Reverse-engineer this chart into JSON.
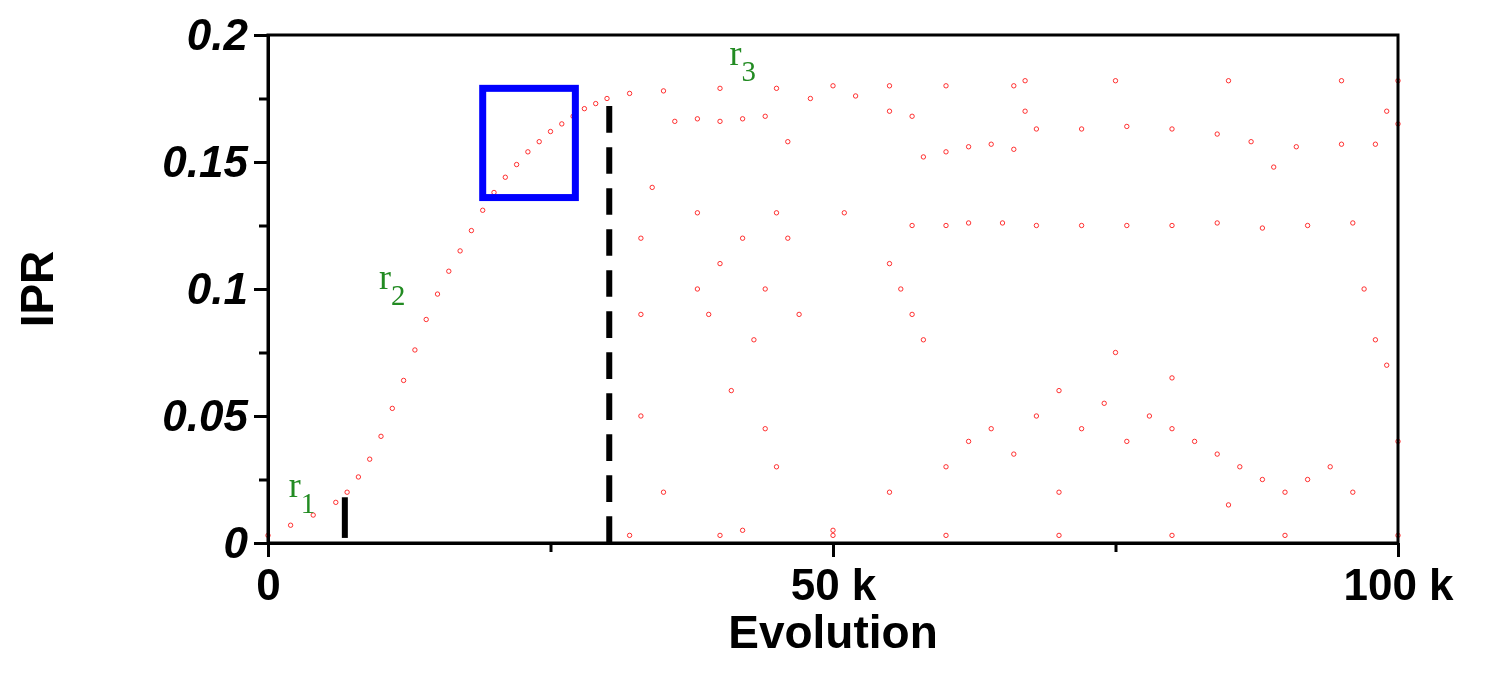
{
  "chart_data": {
    "type": "scatter",
    "xlabel": "Evolution",
    "ylabel": "IPR",
    "xlim": [
      0,
      100
    ],
    "ylim": [
      0,
      0.2
    ],
    "xticks": [
      {
        "value": 0,
        "label": "0"
      },
      {
        "value": 25,
        "label": null
      },
      {
        "value": 50,
        "label": "50 k"
      },
      {
        "value": 75,
        "label": null
      },
      {
        "value": 100,
        "label": "100 k"
      }
    ],
    "yticks": [
      0,
      {
        "value": 0.025,
        "label": null
      },
      0.05,
      {
        "value": 0.075,
        "label": null
      },
      0.1,
      {
        "value": 0.125,
        "label": null
      },
      0.15,
      {
        "value": 0.175,
        "label": null
      },
      0.2
    ],
    "marker": "circle",
    "grid": false,
    "series": [
      {
        "color": "#ff0000",
        "x": [
          0,
          2,
          4,
          6,
          7,
          8,
          9,
          10,
          11,
          12,
          13,
          14,
          15,
          16,
          17,
          18,
          19,
          20,
          21,
          22,
          23,
          24,
          25,
          26,
          27,
          28,
          29,
          30,
          32,
          35,
          40,
          45,
          50,
          55,
          60,
          66,
          67,
          75,
          85,
          95,
          100,
          32,
          40,
          50,
          60,
          70,
          80,
          90,
          100,
          36,
          38,
          40,
          42,
          44,
          46,
          48,
          52,
          55,
          57,
          58,
          60,
          62,
          64,
          66,
          67,
          68,
          72,
          76,
          80,
          84,
          87,
          89,
          91,
          95,
          98,
          99,
          100,
          33,
          33,
          33,
          34,
          35,
          38,
          38,
          39,
          40,
          41,
          42,
          43,
          44,
          44,
          45,
          45,
          46,
          47,
          51,
          55,
          56,
          57,
          57,
          58,
          60,
          62,
          65,
          68,
          72,
          76,
          80,
          84,
          88,
          92,
          96,
          60,
          62,
          64,
          66,
          68,
          70,
          72,
          74,
          76,
          78,
          80,
          82,
          84,
          86,
          88,
          90,
          92,
          94,
          96,
          97,
          98,
          99,
          100,
          75,
          80,
          70,
          85,
          55,
          50,
          42
        ],
        "values": [
          0.003,
          0.007,
          0.011,
          0.016,
          0.02,
          0.026,
          0.033,
          0.042,
          0.053,
          0.064,
          0.076,
          0.088,
          0.098,
          0.107,
          0.115,
          0.123,
          0.131,
          0.138,
          0.144,
          0.149,
          0.154,
          0.158,
          0.162,
          0.165,
          0.168,
          0.171,
          0.173,
          0.175,
          0.177,
          0.178,
          0.179,
          0.179,
          0.18,
          0.18,
          0.18,
          0.18,
          0.182,
          0.182,
          0.182,
          0.182,
          0.182,
          0.003,
          0.003,
          0.003,
          0.003,
          0.003,
          0.003,
          0.003,
          0.003,
          0.166,
          0.167,
          0.166,
          0.167,
          0.168,
          0.158,
          0.175,
          0.176,
          0.17,
          0.168,
          0.152,
          0.154,
          0.156,
          0.157,
          0.155,
          0.17,
          0.163,
          0.163,
          0.164,
          0.163,
          0.161,
          0.158,
          0.148,
          0.156,
          0.157,
          0.157,
          0.17,
          0.165,
          0.12,
          0.09,
          0.05,
          0.14,
          0.02,
          0.13,
          0.1,
          0.09,
          0.11,
          0.06,
          0.12,
          0.08,
          0.1,
          0.045,
          0.13,
          0.03,
          0.12,
          0.09,
          0.13,
          0.11,
          0.1,
          0.09,
          0.125,
          0.08,
          0.125,
          0.126,
          0.126,
          0.125,
          0.125,
          0.125,
          0.125,
          0.126,
          0.124,
          0.125,
          0.126,
          0.03,
          0.04,
          0.045,
          0.035,
          0.05,
          0.06,
          0.045,
          0.055,
          0.04,
          0.05,
          0.045,
          0.04,
          0.035,
          0.03,
          0.025,
          0.02,
          0.025,
          0.03,
          0.02,
          0.1,
          0.08,
          0.07,
          0.04,
          0.075,
          0.065,
          0.02,
          0.015,
          0.02,
          0.005,
          0.005
        ]
      },
      {
        "type": "line",
        "color": "#000000",
        "line_style": "solid",
        "marker": "none",
        "x": [
          6.8,
          6.8
        ],
        "values": [
          0.002,
          0.018
        ]
      },
      {
        "type": "line",
        "color": "#000000",
        "line_style": "dashed",
        "marker": "none",
        "x": [
          30.2,
          30.2
        ],
        "values": [
          0,
          0.172
        ]
      }
    ],
    "annotations": [
      "r$_{1}$",
      "r$_{2}$",
      "r$_{3}$"
    ]
  }
}
